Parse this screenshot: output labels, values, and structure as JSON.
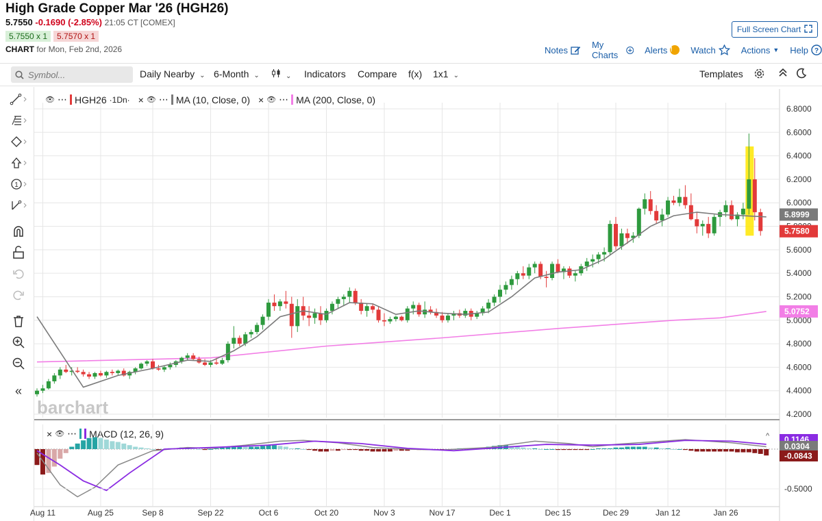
{
  "header": {
    "title": "High Grade Copper Mar '26 (HGH26)",
    "last": "5.7550",
    "change": "-0.1690 (-2.85%)",
    "time": "21:05 CT [COMEX]",
    "bid": "5.7550 x 1",
    "ask": "5.7570 x 1",
    "chart_label": "CHART",
    "chart_for": "for Mon, Feb 2nd, 2026",
    "fullscreen_label": "Full Screen Chart",
    "links": {
      "notes": "Notes",
      "mycharts": "My Charts",
      "alerts": "Alerts",
      "alerts_badge": "!",
      "watch": "Watch",
      "actions": "Actions",
      "help": "Help"
    }
  },
  "toolbar": {
    "symbol_placeholder": "Symbol...",
    "interval": "Daily Nearby",
    "range": "6-Month",
    "chart_type": "⫿",
    "indicators": "Indicators",
    "compare": "Compare",
    "fx": "f(x)",
    "layout": "1x1",
    "templates": "Templates"
  },
  "legend": {
    "symbol": "HGH26",
    "symbol_suffix": "·1Dn·",
    "ma10": "MA (10, Close, 0)",
    "ma200": "MA (200, Close, 0)",
    "macd": "MACD (12, 26, 9)"
  },
  "colors": {
    "up": "#2e9a3e",
    "down": "#e23a3a",
    "ma10": "#7a7a7a",
    "ma200": "#f27ee6",
    "macd": "#888888",
    "signal": "#8a2be2",
    "hist_up": "#26a4a4",
    "hist_down": "#8b1a1a",
    "accent": "#1a5ea8"
  },
  "chart_data": {
    "type": "candlestick",
    "title": "High Grade Copper Mar '26 (HGH26)",
    "price_axis": {
      "min": 4.2,
      "max": 6.8,
      "ticks": [
        "6.8000",
        "6.6000",
        "6.4000",
        "6.2000",
        "6.0000",
        "5.8000",
        "5.6000",
        "5.4000",
        "5.2000",
        "5.0000",
        "4.8000",
        "4.6000",
        "4.4000",
        "4.2000"
      ]
    },
    "price_labels": [
      {
        "text": "5.8999",
        "value": 5.8999,
        "color": "#7a7a7a"
      },
      {
        "text": "5.7580",
        "value": 5.758,
        "color": "#e23a3a"
      },
      {
        "text": "5.0752",
        "value": 5.0752,
        "color": "#f27ee6"
      }
    ],
    "x_labels": [
      {
        "text": "Aug 11",
        "index": 1
      },
      {
        "text": "Aug 25",
        "index": 11
      },
      {
        "text": "Sep 8",
        "index": 20
      },
      {
        "text": "Sep 22",
        "index": 30
      },
      {
        "text": "Oct 6",
        "index": 40
      },
      {
        "text": "Oct 20",
        "index": 50
      },
      {
        "text": "Nov 3",
        "index": 60
      },
      {
        "text": "Nov 17",
        "index": 70
      },
      {
        "text": "Dec 1",
        "index": 80
      },
      {
        "text": "Dec 15",
        "index": 90
      },
      {
        "text": "Dec 29",
        "index": 100
      },
      {
        "text": "Jan 12",
        "index": 109
      },
      {
        "text": "Jan 26",
        "index": 119
      }
    ],
    "candles": [
      [
        4.37,
        4.42,
        4.35,
        4.4
      ],
      [
        4.4,
        4.45,
        4.38,
        4.42
      ],
      [
        4.42,
        4.5,
        4.41,
        4.48
      ],
      [
        4.48,
        4.55,
        4.46,
        4.53
      ],
      [
        4.53,
        4.6,
        4.5,
        4.58
      ],
      [
        4.58,
        4.62,
        4.55,
        4.56
      ],
      [
        4.56,
        4.6,
        4.53,
        4.57
      ],
      [
        4.57,
        4.6,
        4.55,
        4.56
      ],
      [
        4.56,
        4.58,
        4.52,
        4.54
      ],
      [
        4.54,
        4.56,
        4.5,
        4.52
      ],
      [
        4.52,
        4.56,
        4.5,
        4.55
      ],
      [
        4.55,
        4.57,
        4.52,
        4.53
      ],
      [
        4.53,
        4.57,
        4.51,
        4.56
      ],
      [
        4.56,
        4.58,
        4.53,
        4.55
      ],
      [
        4.55,
        4.58,
        4.53,
        4.57
      ],
      [
        4.57,
        4.59,
        4.52,
        4.53
      ],
      [
        4.53,
        4.57,
        4.5,
        4.56
      ],
      [
        4.56,
        4.6,
        4.54,
        4.59
      ],
      [
        4.59,
        4.64,
        4.58,
        4.63
      ],
      [
        4.63,
        4.66,
        4.61,
        4.65
      ],
      [
        4.65,
        4.67,
        4.58,
        4.59
      ],
      [
        4.59,
        4.62,
        4.57,
        4.58
      ],
      [
        4.58,
        4.61,
        4.56,
        4.6
      ],
      [
        4.6,
        4.64,
        4.58,
        4.62
      ],
      [
        4.62,
        4.66,
        4.6,
        4.65
      ],
      [
        4.65,
        4.69,
        4.63,
        4.68
      ],
      [
        4.68,
        4.72,
        4.66,
        4.7
      ],
      [
        4.7,
        4.72,
        4.66,
        4.67
      ],
      [
        4.67,
        4.69,
        4.63,
        4.64
      ],
      [
        4.64,
        4.67,
        4.61,
        4.62
      ],
      [
        4.62,
        4.66,
        4.6,
        4.64
      ],
      [
        4.64,
        4.68,
        4.62,
        4.63
      ],
      [
        4.63,
        4.68,
        4.62,
        4.66
      ],
      [
        4.66,
        4.82,
        4.64,
        4.8
      ],
      [
        4.8,
        4.95,
        4.76,
        4.85
      ],
      [
        4.85,
        4.87,
        4.78,
        4.8
      ],
      [
        4.8,
        4.9,
        4.78,
        4.88
      ],
      [
        4.88,
        4.92,
        4.85,
        4.9
      ],
      [
        4.9,
        4.98,
        4.88,
        4.96
      ],
      [
        4.96,
        5.05,
        4.92,
        5.03
      ],
      [
        5.03,
        5.18,
        5.0,
        5.15
      ],
      [
        5.15,
        5.22,
        5.08,
        5.12
      ],
      [
        5.12,
        5.18,
        5.08,
        5.16
      ],
      [
        5.16,
        5.25,
        5.1,
        5.14
      ],
      [
        5.14,
        5.2,
        4.85,
        4.95
      ],
      [
        4.95,
        5.18,
        4.9,
        5.12
      ],
      [
        5.12,
        5.2,
        5.0,
        5.04
      ],
      [
        5.04,
        5.12,
        4.95,
        5.02
      ],
      [
        5.02,
        5.1,
        4.97,
        5.06
      ],
      [
        5.06,
        5.12,
        4.96,
        5.0
      ],
      [
        5.0,
        5.1,
        4.98,
        5.08
      ],
      [
        5.08,
        5.16,
        5.05,
        5.14
      ],
      [
        5.14,
        5.2,
        5.1,
        5.18
      ],
      [
        5.18,
        5.22,
        5.12,
        5.2
      ],
      [
        5.2,
        5.28,
        5.15,
        5.25
      ],
      [
        5.25,
        5.27,
        5.13,
        5.15
      ],
      [
        5.15,
        5.18,
        5.05,
        5.08
      ],
      [
        5.08,
        5.14,
        5.03,
        5.12
      ],
      [
        5.12,
        5.14,
        5.06,
        5.09
      ],
      [
        5.09,
        5.12,
        4.98,
        5.0
      ],
      [
        5.0,
        5.06,
        4.95,
        4.99
      ],
      [
        4.99,
        5.03,
        4.97,
        5.01
      ],
      [
        5.01,
        5.04,
        4.99,
        5.03
      ],
      [
        5.03,
        5.04,
        4.99,
        5.0
      ],
      [
        5.0,
        5.12,
        4.98,
        5.1
      ],
      [
        5.1,
        5.16,
        5.05,
        5.13
      ],
      [
        5.13,
        5.15,
        5.03,
        5.05
      ],
      [
        5.05,
        5.16,
        5.02,
        5.09
      ],
      [
        5.09,
        5.12,
        5.05,
        5.07
      ],
      [
        5.07,
        5.1,
        5.02,
        5.04
      ],
      [
        5.04,
        5.07,
        4.98,
        5.0
      ],
      [
        5.0,
        5.06,
        4.98,
        5.04
      ],
      [
        5.04,
        5.08,
        5.0,
        5.06
      ],
      [
        5.06,
        5.09,
        5.02,
        5.04
      ],
      [
        5.04,
        5.1,
        5.02,
        5.08
      ],
      [
        5.08,
        5.1,
        5.0,
        5.03
      ],
      [
        5.03,
        5.08,
        5.01,
        5.06
      ],
      [
        5.06,
        5.12,
        5.04,
        5.1
      ],
      [
        5.1,
        5.18,
        5.06,
        5.15
      ],
      [
        5.15,
        5.22,
        5.12,
        5.2
      ],
      [
        5.2,
        5.3,
        5.15,
        5.26
      ],
      [
        5.26,
        5.33,
        5.22,
        5.3
      ],
      [
        5.3,
        5.38,
        5.26,
        5.35
      ],
      [
        5.35,
        5.42,
        5.3,
        5.4
      ],
      [
        5.4,
        5.46,
        5.35,
        5.38
      ],
      [
        5.38,
        5.48,
        5.35,
        5.45
      ],
      [
        5.45,
        5.5,
        5.4,
        5.48
      ],
      [
        5.48,
        5.5,
        5.35,
        5.37
      ],
      [
        5.37,
        5.42,
        5.28,
        5.36
      ],
      [
        5.36,
        5.5,
        5.34,
        5.48
      ],
      [
        5.48,
        5.52,
        5.4,
        5.41
      ],
      [
        5.41,
        5.46,
        5.35,
        5.44
      ],
      [
        5.44,
        5.46,
        5.36,
        5.38
      ],
      [
        5.38,
        5.42,
        5.33,
        5.4
      ],
      [
        5.4,
        5.48,
        5.38,
        5.46
      ],
      [
        5.46,
        5.53,
        5.42,
        5.5
      ],
      [
        5.5,
        5.56,
        5.45,
        5.52
      ],
      [
        5.52,
        5.58,
        5.48,
        5.56
      ],
      [
        5.56,
        5.62,
        5.5,
        5.58
      ],
      [
        5.58,
        5.85,
        5.56,
        5.82
      ],
      [
        5.82,
        5.88,
        5.6,
        5.63
      ],
      [
        5.63,
        5.78,
        5.6,
        5.74
      ],
      [
        5.74,
        5.78,
        5.65,
        5.7
      ],
      [
        5.7,
        5.75,
        5.66,
        5.72
      ],
      [
        5.72,
        5.96,
        5.7,
        5.95
      ],
      [
        5.95,
        6.08,
        5.9,
        6.03
      ],
      [
        6.03,
        6.1,
        5.9,
        5.93
      ],
      [
        5.93,
        5.98,
        5.82,
        5.85
      ],
      [
        5.85,
        5.95,
        5.8,
        5.9
      ],
      [
        5.9,
        6.05,
        5.88,
        6.02
      ],
      [
        6.02,
        6.06,
        5.98,
        6.0
      ],
      [
        6.0,
        6.12,
        5.97,
        6.05
      ],
      [
        6.05,
        6.15,
        5.95,
        5.98
      ],
      [
        5.98,
        6.08,
        5.85,
        5.86
      ],
      [
        5.86,
        5.92,
        5.74,
        5.8
      ],
      [
        5.8,
        5.85,
        5.72,
        5.82
      ],
      [
        5.82,
        5.88,
        5.7,
        5.74
      ],
      [
        5.74,
        5.9,
        5.72,
        5.88
      ],
      [
        5.88,
        5.94,
        5.8,
        5.92
      ],
      [
        5.92,
        6.02,
        5.88,
        5.98
      ],
      [
        5.98,
        6.02,
        5.85,
        5.86
      ],
      [
        5.86,
        5.92,
        5.8,
        5.9
      ],
      [
        5.9,
        6.0,
        5.86,
        5.95
      ],
      [
        5.95,
        6.59,
        5.9,
        6.2
      ],
      [
        6.2,
        6.38,
        5.85,
        5.92
      ],
      [
        5.92,
        5.95,
        5.72,
        5.76
      ]
    ],
    "ma10": [
      [
        0,
        5.03
      ],
      [
        8,
        4.43
      ],
      [
        14,
        4.53
      ],
      [
        20,
        4.59
      ],
      [
        26,
        4.66
      ],
      [
        30,
        4.65
      ],
      [
        34,
        4.74
      ],
      [
        38,
        4.86
      ],
      [
        42,
        5.03
      ],
      [
        46,
        5.08
      ],
      [
        50,
        5.05
      ],
      [
        54,
        5.15
      ],
      [
        58,
        5.14
      ],
      [
        62,
        5.05
      ],
      [
        66,
        5.08
      ],
      [
        70,
        5.06
      ],
      [
        74,
        5.05
      ],
      [
        78,
        5.07
      ],
      [
        82,
        5.2
      ],
      [
        86,
        5.36
      ],
      [
        90,
        5.41
      ],
      [
        94,
        5.43
      ],
      [
        98,
        5.52
      ],
      [
        102,
        5.66
      ],
      [
        106,
        5.8
      ],
      [
        110,
        5.89
      ],
      [
        114,
        5.92
      ],
      [
        118,
        5.9
      ],
      [
        122,
        5.89
      ],
      [
        126,
        5.88
      ]
    ],
    "ma200": [
      [
        0,
        4.645
      ],
      [
        30,
        4.68
      ],
      [
        50,
        4.78
      ],
      [
        70,
        4.85
      ],
      [
        90,
        4.93
      ],
      [
        110,
        5.0
      ],
      [
        118,
        5.02
      ],
      [
        126,
        5.075
      ]
    ],
    "macd": {
      "axis_ticks": [
        "-0.5000"
      ],
      "labels": [
        {
          "text": "0.1146",
          "color": "#8a2be2"
        },
        {
          "text": "0.0304",
          "color": "#7a7a7a"
        },
        {
          "text": "-0.0843",
          "color": "#8b1a1a"
        }
      ],
      "range": [
        -0.6,
        0.15
      ],
      "macd_line": [
        [
          0,
          -0.05
        ],
        [
          4,
          -0.45
        ],
        [
          7,
          -0.6
        ],
        [
          10,
          -0.48
        ],
        [
          14,
          -0.2
        ],
        [
          20,
          -0.02
        ],
        [
          26,
          0.02
        ],
        [
          30,
          0.01
        ],
        [
          36,
          0.05
        ],
        [
          42,
          0.1
        ],
        [
          46,
          0.11
        ],
        [
          52,
          0.08
        ],
        [
          58,
          0.02
        ],
        [
          64,
          0.0
        ],
        [
          70,
          -0.01
        ],
        [
          78,
          0.02
        ],
        [
          82,
          0.06
        ],
        [
          86,
          0.1
        ],
        [
          92,
          0.07
        ],
        [
          96,
          0.03
        ],
        [
          100,
          0.06
        ],
        [
          106,
          0.09
        ],
        [
          112,
          0.12
        ],
        [
          116,
          0.1
        ],
        [
          120,
          0.08
        ],
        [
          126,
          0.03
        ]
      ],
      "signal_line": [
        [
          0,
          -0.02
        ],
        [
          4,
          -0.2
        ],
        [
          8,
          -0.4
        ],
        [
          12,
          -0.52
        ],
        [
          16,
          -0.3
        ],
        [
          22,
          0.0
        ],
        [
          30,
          0.02
        ],
        [
          40,
          0.05
        ],
        [
          48,
          0.1
        ],
        [
          56,
          0.07
        ],
        [
          64,
          0.01
        ],
        [
          72,
          -0.02
        ],
        [
          80,
          0.02
        ],
        [
          88,
          0.06
        ],
        [
          96,
          0.05
        ],
        [
          104,
          0.06
        ],
        [
          112,
          0.11
        ],
        [
          120,
          0.1
        ],
        [
          126,
          0.06
        ]
      ],
      "histogram": [
        -0.2,
        -0.32,
        -0.3,
        -0.22,
        -0.12,
        -0.05,
        0.03,
        0.07,
        0.11,
        0.14,
        0.15,
        0.14,
        0.12,
        0.1,
        0.09,
        0.07,
        0.05,
        0.03,
        0.02,
        0.01,
        0.0,
        -0.01,
        0.0,
        0.01,
        0.01,
        0.02,
        0.02,
        0.01,
        0.0,
        -0.01,
        0.0,
        0.01,
        0.02,
        0.03,
        0.04,
        0.04,
        0.03,
        0.03,
        0.03,
        0.04,
        0.05,
        0.05,
        0.04,
        0.03,
        0.01,
        0.01,
        0.0,
        -0.01,
        -0.02,
        -0.03,
        -0.03,
        -0.02,
        -0.02,
        -0.01,
        -0.01,
        -0.01,
        -0.02,
        -0.02,
        -0.03,
        -0.03,
        -0.03,
        -0.03,
        -0.02,
        -0.02,
        -0.02,
        -0.01,
        -0.01,
        -0.01,
        -0.01,
        -0.01,
        -0.01,
        0.0,
        0.0,
        0.01,
        0.01,
        0.01,
        0.01,
        0.02,
        0.03,
        0.04,
        0.05,
        0.05,
        0.04,
        0.03,
        0.02,
        0.01,
        0.01,
        0.0,
        0.0,
        0.0,
        -0.01,
        -0.01,
        -0.01,
        -0.01,
        -0.01,
        -0.01,
        0.0,
        0.01,
        0.01,
        0.01,
        0.02,
        0.02,
        0.03,
        0.03,
        0.03,
        0.03,
        0.02,
        0.02,
        0.01,
        0.01,
        0.0,
        0.0,
        -0.01,
        -0.02,
        -0.03,
        -0.03,
        -0.03,
        -0.03,
        -0.03,
        -0.03,
        -0.03,
        -0.04,
        -0.04,
        -0.04,
        -0.05,
        -0.06,
        -0.08
      ]
    }
  }
}
